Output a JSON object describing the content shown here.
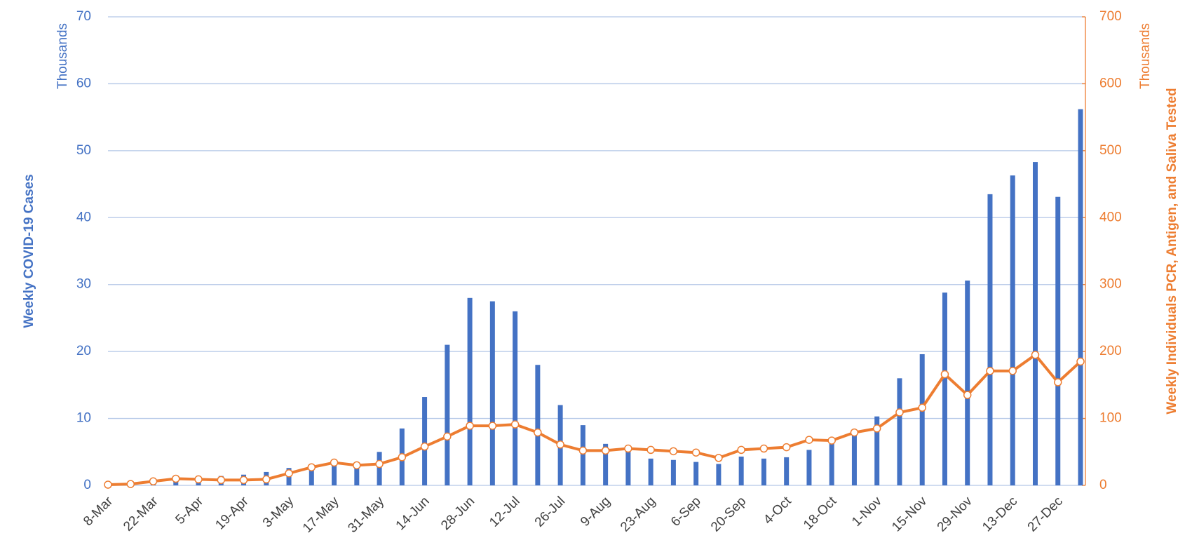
{
  "chart_data": {
    "type": "bar",
    "y_label": "Weekly COVID-19 Cases",
    "y2_label": "Weekly Individuals PCR, Antigen, and Saliva  Tested",
    "y_unit_label": "Thousands",
    "y2_unit_label": "Thousands",
    "categories": [
      "8-Mar",
      null,
      "22-Mar",
      null,
      "5-Apr",
      null,
      "19-Apr",
      null,
      "3-May",
      null,
      "17-May",
      null,
      "31-May",
      null,
      "14-Jun",
      null,
      "28-Jun",
      null,
      "12-Jul",
      null,
      "26-Jul",
      null,
      "9-Aug",
      null,
      "23-Aug",
      null,
      "6-Sep",
      null,
      "20-Sep",
      null,
      "4-Oct",
      null,
      "18-Oct",
      null,
      "1-Nov",
      null,
      "15-Nov",
      null,
      "29-Nov",
      null,
      "13-Dec",
      null,
      "27-Dec",
      null
    ],
    "series": [
      {
        "name": "Weekly COVID-19 Cases",
        "type": "bar",
        "color": "#4472c4",
        "values": [
          0.1,
          0.3,
          0.5,
          0.8,
          1.2,
          1.4,
          1.6,
          2.0,
          2.6,
          3.0,
          3.6,
          3.2,
          5.0,
          8.5,
          13.2,
          21.0,
          28.0,
          27.5,
          26.0,
          18.0,
          12.0,
          9.0,
          6.2,
          5.5,
          4.0,
          3.8,
          3.5,
          3.2,
          4.3,
          4.0,
          4.2,
          5.3,
          6.8,
          8.0,
          10.3,
          16.0,
          19.6,
          28.8,
          30.6,
          43.5,
          46.3,
          48.3,
          43.1,
          56.2
        ]
      },
      {
        "name": "Weekly Individuals PCR, Antigen, and Saliva  Tested",
        "type": "line",
        "axis": "y2",
        "color": "#ed7d31",
        "values": [
          1,
          2,
          6,
          10,
          9,
          8,
          8,
          9,
          18,
          27,
          34,
          30,
          32,
          42,
          58,
          73,
          89,
          89,
          91,
          79,
          61,
          52,
          52,
          55,
          53,
          51,
          49,
          41,
          53,
          55,
          57,
          68,
          67,
          79,
          85,
          109,
          116,
          166,
          135,
          171,
          171,
          195,
          154,
          185
        ]
      }
    ],
    "ylim": [
      0,
      70
    ],
    "yticks": [
      0,
      10,
      20,
      30,
      40,
      50,
      60,
      70
    ],
    "y2lim": [
      0,
      700
    ],
    "y2ticks": [
      0,
      100,
      200,
      300,
      400,
      500,
      600,
      700
    ],
    "grid": true
  }
}
